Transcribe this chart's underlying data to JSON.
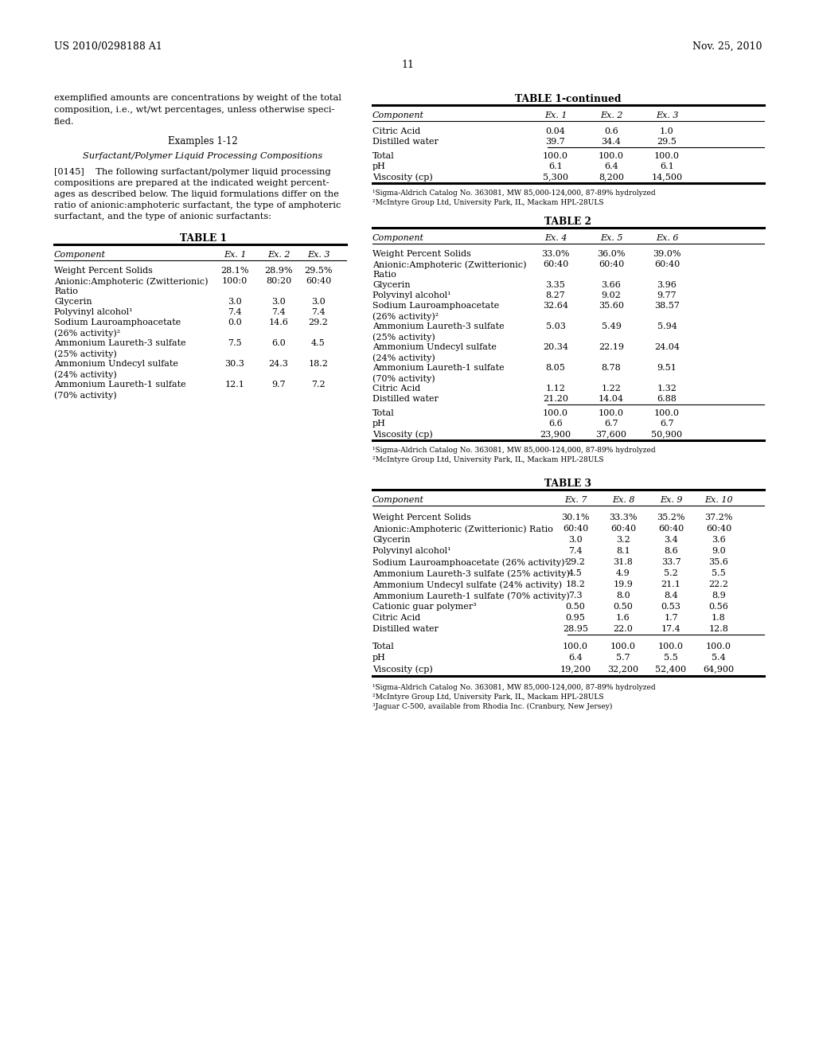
{
  "header_left": "US 2010/0298188 A1",
  "header_right": "Nov. 25, 2010",
  "page_number": "11",
  "intro_lines": [
    "exemplified amounts are concentrations by weight of the total",
    "composition, i.e., wt/wt percentages, unless otherwise speci-",
    "fied."
  ],
  "examples_heading": "Examples 1-12",
  "subheading": "Surfactant/Polymer Liquid Processing Compositions",
  "para_lines": [
    "[0145]    The following surfactant/polymer liquid processing",
    "compositions are prepared at the indicated weight percent-",
    "ages as described below. The liquid formulations differ on the",
    "ratio of anionic:amphoteric surfactant, the type of amphoteric",
    "surfactant, and the type of anionic surfactants:"
  ],
  "table1_title": "TABLE 1",
  "table1_headers": [
    "Component",
    "Ex. 1",
    "Ex. 2",
    "Ex. 3"
  ],
  "table1_rows": [
    [
      "Weight Percent Solids",
      "28.1%",
      "28.9%",
      "29.5%"
    ],
    [
      "Anionic:Amphoteric (Zwitterionic)",
      "100:0",
      "80:20",
      "60:40"
    ],
    [
      "Ratio",
      "",
      "",
      ""
    ],
    [
      "Glycerin",
      "3.0",
      "3.0",
      "3.0"
    ],
    [
      "Polyvinyl alcohol¹",
      "7.4",
      "7.4",
      "7.4"
    ],
    [
      "Sodium Lauroamphoacetate",
      "0.0",
      "14.6",
      "29.2"
    ],
    [
      "(26% activity)²",
      "",
      "",
      ""
    ],
    [
      "Ammonium Laureth-3 sulfate",
      "7.5",
      "6.0",
      "4.5"
    ],
    [
      "(25% activity)",
      "",
      "",
      ""
    ],
    [
      "Ammonium Undecyl sulfate",
      "30.3",
      "24.3",
      "18.2"
    ],
    [
      "(24% activity)",
      "",
      "",
      ""
    ],
    [
      "Ammonium Laureth-1 sulfate",
      "12.1",
      "9.7",
      "7.2"
    ],
    [
      "(70% activity)",
      "",
      "",
      ""
    ]
  ],
  "table1cont_title": "TABLE 1-continued",
  "table1cont_headers": [
    "Component",
    "Ex. 1",
    "Ex. 2",
    "Ex. 3"
  ],
  "table1cont_data": [
    [
      "Citric Acid",
      "0.04",
      "0.6",
      "1.0"
    ],
    [
      "Distilled water",
      "39.7",
      "34.4",
      "29.5"
    ]
  ],
  "table1cont_totals": [
    [
      "Total",
      "100.0",
      "100.0",
      "100.0"
    ],
    [
      "pH",
      "6.1",
      "6.4",
      "6.1"
    ],
    [
      "Viscosity (cp)",
      "5,300",
      "8,200",
      "14,500"
    ]
  ],
  "table1cont_footnotes": [
    "¹Sigma-Aldrich Catalog No. 363081, MW 85,000-124,000, 87-89% hydrolyzed",
    "²McIntyre Group Ltd, University Park, IL, Mackam HPL-28ULS"
  ],
  "table2_title": "TABLE 2",
  "table2_headers": [
    "Component",
    "Ex. 4",
    "Ex. 5",
    "Ex. 6"
  ],
  "table2_rows": [
    [
      "Weight Percent Solids",
      "33.0%",
      "36.0%",
      "39.0%"
    ],
    [
      "Anionic:Amphoteric (Zwitterionic)",
      "60:40",
      "60:40",
      "60:40"
    ],
    [
      "Ratio",
      "",
      "",
      ""
    ],
    [
      "Glycerin",
      "3.35",
      "3.66",
      "3.96"
    ],
    [
      "Polyvinyl alcohol¹",
      "8.27",
      "9.02",
      "9.77"
    ],
    [
      "Sodium Lauroamphoacetate",
      "32.64",
      "35.60",
      "38.57"
    ],
    [
      "(26% activity)²",
      "",
      "",
      ""
    ],
    [
      "Ammonium Laureth-3 sulfate",
      "5.03",
      "5.49",
      "5.94"
    ],
    [
      "(25% activity)",
      "",
      "",
      ""
    ],
    [
      "Ammonium Undecyl sulfate",
      "20.34",
      "22.19",
      "24.04"
    ],
    [
      "(24% activity)",
      "",
      "",
      ""
    ],
    [
      "Ammonium Laureth-1 sulfate",
      "8.05",
      "8.78",
      "9.51"
    ],
    [
      "(70% activity)",
      "",
      "",
      ""
    ],
    [
      "Citric Acid",
      "1.12",
      "1.22",
      "1.32"
    ],
    [
      "Distilled water",
      "21.20",
      "14.04",
      "6.88"
    ]
  ],
  "table2_totals": [
    [
      "Total",
      "100.0",
      "100.0",
      "100.0"
    ],
    [
      "pH",
      "6.6",
      "6.7",
      "6.7"
    ],
    [
      "Viscosity (cp)",
      "23,900",
      "37,600",
      "50,900"
    ]
  ],
  "table2_footnotes": [
    "¹Sigma-Aldrich Catalog No. 363081, MW 85,000-124,000, 87-89% hydrolyzed",
    "²McIntyre Group Ltd, University Park, IL, Mackam HPL-28ULS"
  ],
  "table3_title": "TABLE 3",
  "table3_headers": [
    "Component",
    "Ex. 7",
    "Ex. 8",
    "Ex. 9",
    "Ex. 10"
  ],
  "table3_rows": [
    [
      "Weight Percent Solids",
      "30.1%",
      "33.3%",
      "35.2%",
      "37.2%"
    ],
    [
      "Anionic:Amphoteric (Zwitterionic) Ratio",
      "60:40",
      "60:40",
      "60:40",
      "60:40"
    ],
    [
      "Glycerin",
      "3.0",
      "3.2",
      "3.4",
      "3.6"
    ],
    [
      "Polyvinyl alcohol¹",
      "7.4",
      "8.1",
      "8.6",
      "9.0"
    ],
    [
      "Sodium Lauroamphoacetate (26% activity)²",
      "29.2",
      "31.8",
      "33.7",
      "35.6"
    ],
    [
      "Ammonium Laureth-3 sulfate (25% activity)",
      "4.5",
      "4.9",
      "5.2",
      "5.5"
    ],
    [
      "Ammonium Undecyl sulfate (24% activity)",
      "18.2",
      "19.9",
      "21.1",
      "22.2"
    ],
    [
      "Ammonium Laureth-1 sulfate (70% activity)",
      "7.3",
      "8.0",
      "8.4",
      "8.9"
    ],
    [
      "Cationic guar polymer³",
      "0.50",
      "0.50",
      "0.53",
      "0.56"
    ],
    [
      "Citric Acid",
      "0.95",
      "1.6",
      "1.7",
      "1.8"
    ],
    [
      "Distilled water",
      "28.95",
      "22.0",
      "17.4",
      "12.8"
    ]
  ],
  "table3_totals": [
    [
      "Total",
      "100.0",
      "100.0",
      "100.0",
      "100.0"
    ],
    [
      "pH",
      "6.4",
      "5.7",
      "5.5",
      "5.4"
    ],
    [
      "Viscosity (cp)",
      "19,200",
      "32,200",
      "52,400",
      "64,900"
    ]
  ],
  "table3_footnotes": [
    "¹Sigma-Aldrich Catalog No. 363081, MW 85,000-124,000, 87-89% hydrolyzed",
    "²McIntyre Group Ltd, University Park, IL, Mackam HPL-28ULS",
    "³Jaguar C-500, available from Rhodia Inc. (Cranbury, New Jersey)"
  ]
}
